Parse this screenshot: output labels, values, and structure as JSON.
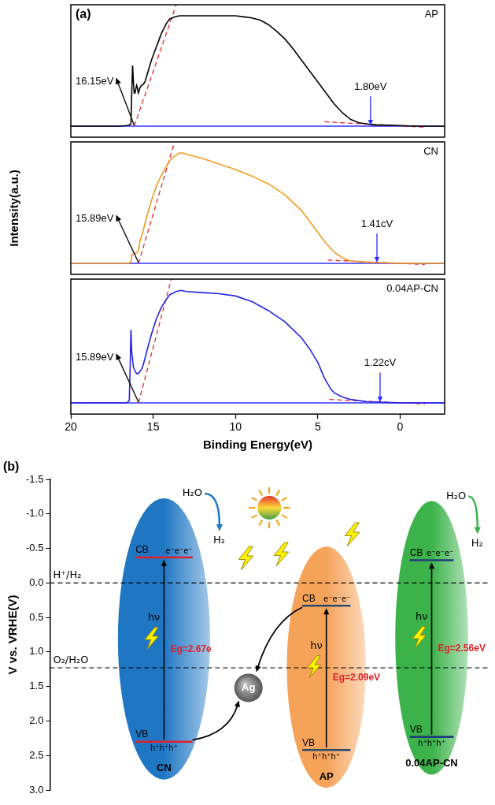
{
  "chart_data": [
    {
      "type": "line",
      "panel": "(a)",
      "title": "AP",
      "xlim": [
        20,
        -2.7
      ],
      "ylim": [
        -0.1,
        1.1
      ],
      "tick_labels": false,
      "series": [
        {
          "color": "#000000",
          "x": [
            20,
            18,
            17,
            16.6,
            16.45,
            16.35,
            16.3,
            16.25,
            16.2,
            16.15,
            16.1,
            16.05,
            16.0,
            15.95,
            15.9,
            15.85,
            15.8,
            15.7,
            15.6,
            15.5,
            15.3,
            15.1,
            14.9,
            14.7,
            14.5,
            14.2,
            14.0,
            13.7,
            13.4,
            13,
            12,
            11,
            10,
            9.5,
            9,
            8.5,
            8,
            7.5,
            7,
            6.5,
            6,
            5.5,
            5,
            4.5,
            4,
            3.5,
            3,
            2.5,
            2,
            1.5,
            1,
            0,
            -1,
            -2.7
          ],
          "values": [
            0,
            0,
            0,
            0.005,
            0.01,
            0.02,
            0.3,
            0.55,
            0.4,
            0.3,
            0.3,
            0.34,
            0.37,
            0.34,
            0.3,
            0.32,
            0.35,
            0.37,
            0.38,
            0.4,
            0.5,
            0.6,
            0.68,
            0.76,
            0.84,
            0.93,
            0.97,
            0.99,
            1.0,
            1.0,
            1.0,
            1.0,
            1.0,
            0.99,
            0.98,
            0.96,
            0.92,
            0.86,
            0.79,
            0.7,
            0.6,
            0.5,
            0.4,
            0.3,
            0.2,
            0.12,
            0.06,
            0.03,
            0.02,
            0.01,
            0.01,
            0.005,
            0,
            0
          ]
        },
        {
          "color": "#e8272b",
          "line_style": "dashed",
          "x": [
            16.15,
            13.6
          ],
          "values": [
            0,
            1.1
          ]
        },
        {
          "color": "#e8272b",
          "line_style": "dashed",
          "x": [
            4.6,
            -1.5
          ],
          "values": [
            0.04,
            -0.01
          ]
        },
        {
          "color": "#3535ff",
          "x": [
            20,
            -2.7
          ],
          "values": [
            0,
            0
          ]
        }
      ],
      "annotations": {
        "cutoff": {
          "text": "16.15eV",
          "value": 16.15
        },
        "onset": {
          "text": "1.80eV",
          "value": 1.8
        }
      }
    },
    {
      "type": "line",
      "title": "CN",
      "ylabel": "Intensity(a.u.)",
      "xlim": [
        20,
        -2.7
      ],
      "ylim": [
        -0.1,
        1.1
      ],
      "tick_labels": false,
      "series": [
        {
          "color": "#f39c1f",
          "x": [
            20,
            17,
            16.5,
            16.35,
            16.3,
            16.1,
            15.95,
            15.9,
            15.8,
            15.6,
            15.4,
            15.2,
            15,
            14.8,
            14.5,
            14.2,
            14,
            13.7,
            13.4,
            13.2,
            13,
            12.5,
            12,
            11,
            10,
            9,
            8,
            7,
            6,
            5.5,
            5,
            4.5,
            4,
            3.5,
            3,
            2,
            1,
            0,
            -2.7
          ],
          "values": [
            0,
            0,
            0,
            0.01,
            0.08,
            0.09,
            0.1,
            0.12,
            0.2,
            0.3,
            0.42,
            0.52,
            0.62,
            0.7,
            0.8,
            0.88,
            0.93,
            0.97,
            1.0,
            1.0,
            0.99,
            0.97,
            0.95,
            0.9,
            0.85,
            0.79,
            0.72,
            0.62,
            0.48,
            0.38,
            0.28,
            0.18,
            0.1,
            0.05,
            0.02,
            0.01,
            0.005,
            0,
            0
          ]
        },
        {
          "color": "#e8272b",
          "line_style": "dashed",
          "x": [
            15.89,
            13.7
          ],
          "values": [
            0,
            1.1
          ]
        },
        {
          "color": "#e8272b",
          "line_style": "dashed",
          "x": [
            4.4,
            -1.5
          ],
          "values": [
            0.03,
            -0.01
          ]
        },
        {
          "color": "#3535ff",
          "x": [
            20,
            -2.7
          ],
          "values": [
            0,
            0
          ]
        }
      ],
      "annotations": {
        "cutoff": {
          "text": "15.89eV",
          "value": 15.89
        },
        "onset": {
          "text": "1.41cV",
          "value": 1.41
        }
      }
    },
    {
      "type": "line",
      "title": "0.04AP-CN",
      "xlabel": "Binding Energy(eV)",
      "xlim": [
        20,
        -2.7
      ],
      "xticks": [
        20,
        15,
        10,
        5,
        0
      ],
      "ylim": [
        -0.1,
        1.1
      ],
      "tick_labels": "x",
      "series": [
        {
          "color": "#2424e6",
          "x": [
            20,
            17,
            16.6,
            16.45,
            16.4,
            16.35,
            16.3,
            16.2,
            16.1,
            16.0,
            15.9,
            15.8,
            15.7,
            15.6,
            15.4,
            15.2,
            15,
            14.8,
            14.5,
            14.2,
            14,
            13.6,
            13.3,
            13,
            12,
            11,
            10,
            9,
            8,
            7,
            6,
            5.5,
            5,
            4.6,
            4.2,
            4,
            3.5,
            3,
            2,
            1,
            0,
            -2.7
          ],
          "values": [
            0,
            0,
            0,
            0.02,
            0.3,
            0.65,
            0.45,
            0.32,
            0.28,
            0.26,
            0.26,
            0.28,
            0.3,
            0.34,
            0.45,
            0.56,
            0.66,
            0.75,
            0.85,
            0.92,
            0.96,
            0.99,
            1.0,
            0.99,
            0.98,
            0.97,
            0.95,
            0.9,
            0.82,
            0.72,
            0.58,
            0.48,
            0.36,
            0.22,
            0.12,
            0.09,
            0.05,
            0.03,
            0.01,
            0.005,
            0,
            0
          ]
        },
        {
          "color": "#e8272b",
          "line_style": "dashed",
          "x": [
            15.89,
            13.9
          ],
          "values": [
            0,
            1.1
          ]
        },
        {
          "color": "#e8272b",
          "line_style": "dashed",
          "x": [
            4.3,
            -1.5
          ],
          "values": [
            0.03,
            -0.01
          ]
        },
        {
          "color": "#3535ff",
          "x": [
            20,
            -2.7
          ],
          "values": [
            0,
            0
          ]
        }
      ],
      "annotations": {
        "cutoff": {
          "text": "15.89eV",
          "value": 15.89
        },
        "onset": {
          "text": "1.22cV",
          "value": 1.22
        }
      }
    },
    {
      "type": "band",
      "panel": "(b)",
      "ylabel": "V vs. VRHE(V)",
      "ylim": [
        3.0,
        -1.5
      ],
      "yticks": [
        -1.5,
        {
          "value": -1,
          "label": "-1.0"
        },
        -0.5,
        {
          "value": 0,
          "label": "0.0"
        },
        0.5,
        {
          "value": 1,
          "label": "1.0"
        },
        1.5,
        {
          "value": 2,
          "label": "2.0"
        },
        2.5,
        {
          "value": 3,
          "label": "3.0"
        }
      ],
      "levels": [
        {
          "label": "H⁺/H₂",
          "value": 0
        },
        {
          "label": "O₂/H₂O",
          "value": 1.23
        }
      ],
      "materials": [
        {
          "name": "CN",
          "cb": -0.37,
          "vb": 2.3,
          "eg_label": "Eg=2.67e",
          "color": "#1f77c4",
          "reaction": [
            "H₂O",
            "H₂"
          ]
        },
        {
          "name": "AP",
          "cb": 0.33,
          "vb": 2.42,
          "eg_label": "Eg=2.09eV",
          "color": "#f6a35a"
        },
        {
          "name": "0.04AP-CN",
          "cb": -0.33,
          "vb": 2.23,
          "eg_label": "Eg=2.56eV",
          "color": "#3cb34a",
          "reaction": [
            "H₂O",
            "H₂"
          ]
        }
      ],
      "band_labels": {
        "cb": "CB",
        "vb": "VB",
        "electrons": "e⁻e⁻e⁻",
        "holes": "h⁺h⁺h⁺",
        "photon": "hν"
      },
      "cocatalyst": "Ag"
    }
  ]
}
